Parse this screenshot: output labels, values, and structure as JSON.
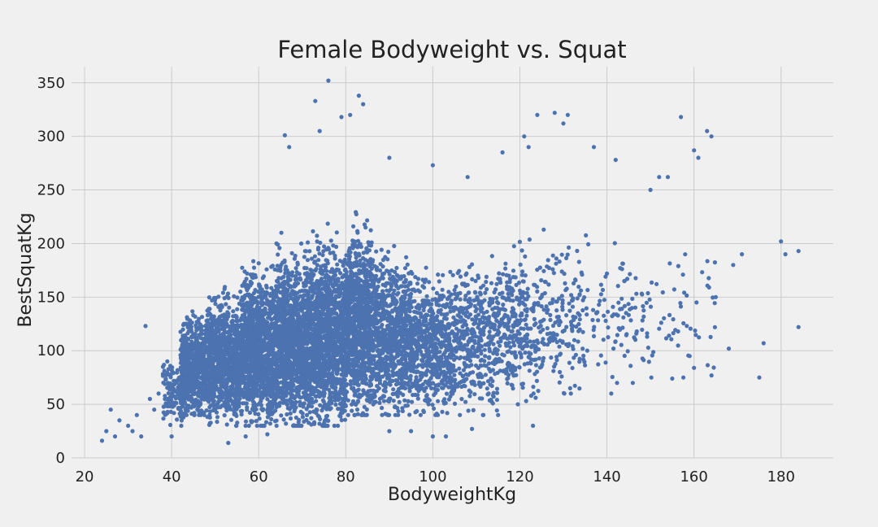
{
  "chart_data": {
    "type": "scatter",
    "title": "Female Bodyweight vs. Squat",
    "xlabel": "BodyweightKg",
    "ylabel": "BestSquatKg",
    "xlim": [
      17,
      192
    ],
    "ylim": [
      0,
      365
    ],
    "xticks": [
      "20",
      "40",
      "60",
      "80",
      "100",
      "120",
      "140",
      "160",
      "180"
    ],
    "yticks": [
      "0",
      "50",
      "100",
      "150",
      "200",
      "250",
      "300",
      "350"
    ],
    "grid": true,
    "legend": "none",
    "point_color": "#4c72b0",
    "series": [
      {
        "points": [
          [
            24,
            16
          ],
          [
            25,
            25
          ],
          [
            26,
            45
          ],
          [
            27,
            20
          ],
          [
            28,
            35
          ],
          [
            30,
            30
          ],
          [
            31,
            25
          ],
          [
            32,
            40
          ],
          [
            33,
            20
          ],
          [
            34,
            123
          ],
          [
            35,
            55
          ],
          [
            36,
            45
          ],
          [
            37,
            60
          ],
          [
            38,
            85
          ],
          [
            39,
            90
          ],
          [
            40,
            20
          ],
          [
            180,
            202
          ],
          [
            181,
            190
          ],
          [
            184,
            193
          ],
          [
            184,
            122
          ],
          [
            176,
            107
          ],
          [
            175,
            75
          ],
          [
            168,
            102
          ],
          [
            171,
            190
          ],
          [
            169,
            180
          ],
          [
            165,
            150
          ],
          [
            164,
            300
          ],
          [
            163,
            305
          ],
          [
            161,
            280
          ],
          [
            160,
            287
          ],
          [
            157,
            318
          ],
          [
            160,
            84
          ],
          [
            159,
            95
          ],
          [
            155,
            74
          ],
          [
            152,
            262
          ],
          [
            154,
            262
          ],
          [
            150,
            250
          ],
          [
            142,
            278
          ],
          [
            137,
            290
          ],
          [
            131,
            320
          ],
          [
            128,
            322
          ],
          [
            124,
            320
          ],
          [
            130,
            312
          ],
          [
            121,
            300
          ],
          [
            122,
            290
          ],
          [
            116,
            285
          ],
          [
            108,
            262
          ],
          [
            100,
            273
          ],
          [
            90,
            280
          ],
          [
            84,
            330
          ],
          [
            83,
            338
          ],
          [
            76,
            352
          ],
          [
            73,
            333
          ],
          [
            81,
            320
          ],
          [
            79,
            318
          ],
          [
            66,
            301
          ],
          [
            67,
            290
          ],
          [
            74,
            305
          ],
          [
            90,
            25
          ],
          [
            95,
            25
          ],
          [
            100,
            20
          ],
          [
            103,
            20
          ],
          [
            109,
            27
          ],
          [
            115,
            40
          ],
          [
            123,
            30
          ],
          [
            141,
            60
          ],
          [
            53,
            14
          ],
          [
            57,
            20
          ],
          [
            62,
            22
          ]
        ]
      }
    ],
    "clusters": [
      {
        "x": [
          42,
          48
        ],
        "y": [
          40,
          160
        ],
        "n": 600
      },
      {
        "x": [
          48,
          56
        ],
        "y": [
          30,
          190
        ],
        "n": 900
      },
      {
        "x": [
          56,
          64
        ],
        "y": [
          30,
          220
        ],
        "n": 1100
      },
      {
        "x": [
          64,
          72
        ],
        "y": [
          30,
          240
        ],
        "n": 1200
      },
      {
        "x": [
          72,
          80
        ],
        "y": [
          30,
          250
        ],
        "n": 1200
      },
      {
        "x": [
          80,
          86
        ],
        "y": [
          40,
          270
        ],
        "n": 900
      },
      {
        "x": [
          86,
          95
        ],
        "y": [
          40,
          240
        ],
        "n": 800
      },
      {
        "x": [
          95,
          105
        ],
        "y": [
          40,
          210
        ],
        "n": 600
      },
      {
        "x": [
          105,
          115
        ],
        "y": [
          40,
          230
        ],
        "n": 400
      },
      {
        "x": [
          115,
          125
        ],
        "y": [
          50,
          240
        ],
        "n": 300
      },
      {
        "x": [
          125,
          135
        ],
        "y": [
          60,
          250
        ],
        "n": 160
      },
      {
        "x": [
          135,
          150
        ],
        "y": [
          70,
          240
        ],
        "n": 100
      },
      {
        "x": [
          150,
          165
        ],
        "y": [
          75,
          230
        ],
        "n": 50
      },
      {
        "x": [
          38,
          44
        ],
        "y": [
          30,
          110
        ],
        "n": 150
      }
    ]
  }
}
